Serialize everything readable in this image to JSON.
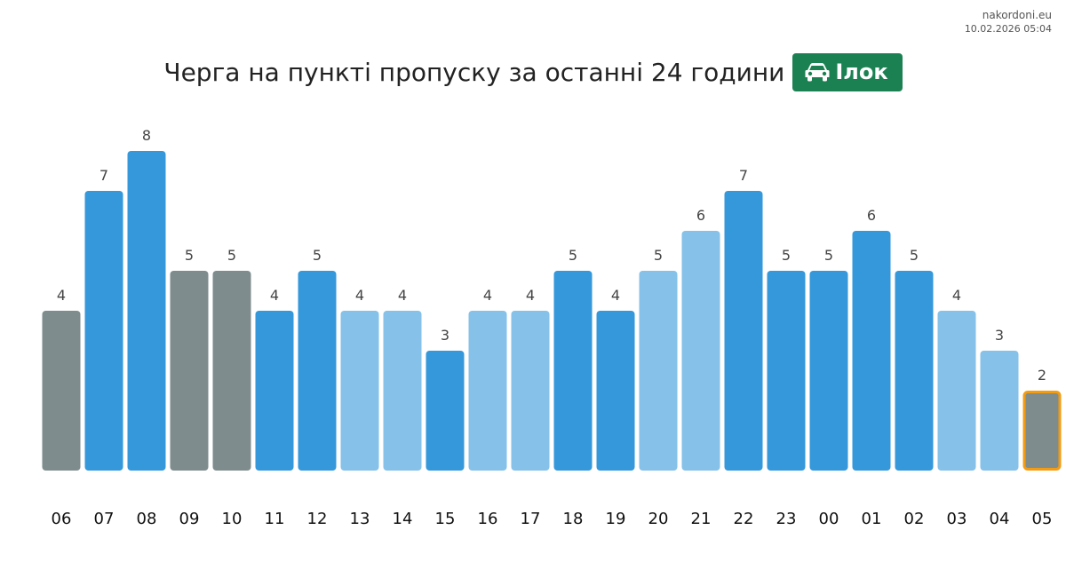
{
  "attribution": {
    "site": "nakordoni.eu",
    "timestamp": "10.02.2026 05:04"
  },
  "header": {
    "title": "Черга на пункті пропуску за останні 24 години",
    "badge": {
      "icon": "car-icon",
      "label": "Ілок",
      "color": "#1c8152"
    }
  },
  "chart_data": {
    "type": "bar",
    "categories": [
      "06",
      "07",
      "08",
      "09",
      "10",
      "11",
      "12",
      "13",
      "14",
      "15",
      "16",
      "17",
      "18",
      "19",
      "20",
      "21",
      "22",
      "23",
      "00",
      "01",
      "02",
      "03",
      "04",
      "05"
    ],
    "values": [
      4,
      7,
      8,
      5,
      5,
      4,
      5,
      4,
      4,
      3,
      4,
      4,
      5,
      4,
      5,
      6,
      7,
      5,
      5,
      6,
      5,
      4,
      3,
      2
    ],
    "bar_styles": [
      "gray",
      "blue",
      "blue",
      "gray",
      "gray",
      "blue",
      "blue",
      "light",
      "light",
      "blue",
      "light",
      "light",
      "blue",
      "blue",
      "light",
      "light",
      "blue",
      "blue",
      "blue",
      "blue",
      "blue",
      "light",
      "light",
      "gray"
    ],
    "style_colors": {
      "gray": "#7f8c8d",
      "blue": "#3498db",
      "light": "#85c1e9"
    },
    "highlight_index": 23,
    "highlight_color": "#f39c12",
    "title": "",
    "xlabel": "",
    "ylabel": "",
    "ylim": [
      0,
      8
    ],
    "grid": false,
    "data_labels": true
  }
}
